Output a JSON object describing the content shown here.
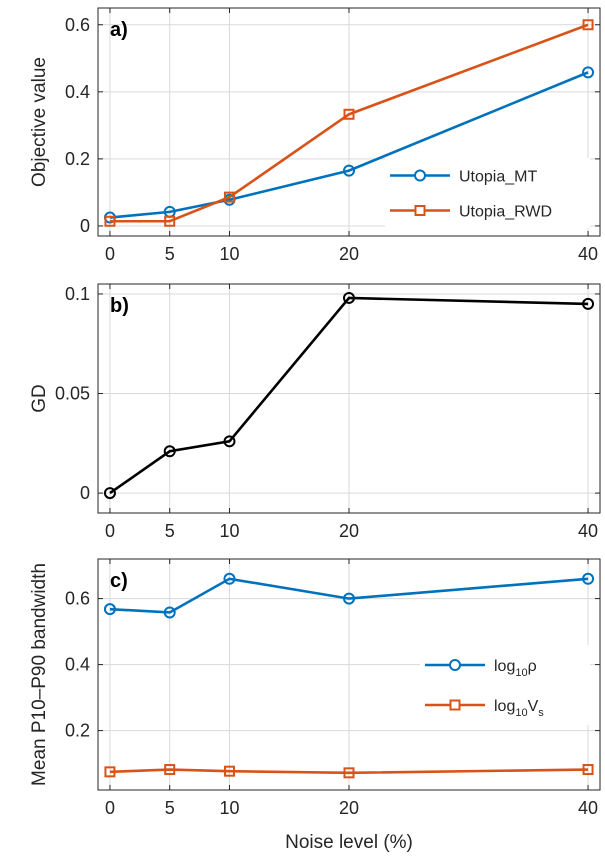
{
  "chart_data": [
    {
      "type": "line",
      "panel_label": "a)",
      "xlabel": "",
      "ylabel": "Objective value",
      "x": [
        0,
        5,
        10,
        20,
        40
      ],
      "xticks": [
        "0",
        "5",
        "10",
        "20",
        "40"
      ],
      "xlim": [
        -1,
        41
      ],
      "ylim": [
        -0.03,
        0.65
      ],
      "yticks": [
        0,
        0.2,
        0.4,
        0.6
      ],
      "yticklabels": [
        "0",
        "0.2",
        "0.4",
        "0.6"
      ],
      "grid": true,
      "legend_position": "bottom-right",
      "series": [
        {
          "name": "Utopia_MT",
          "marker": "circle",
          "color": "#0072BD",
          "values": [
            0.025,
            0.042,
            0.078,
            0.165,
            0.458
          ]
        },
        {
          "name": "Utopia_RWD",
          "marker": "square",
          "color": "#D95319",
          "values": [
            0.014,
            0.014,
            0.086,
            0.333,
            0.6
          ]
        }
      ]
    },
    {
      "type": "line",
      "panel_label": "b)",
      "xlabel": "",
      "ylabel": "GD",
      "x": [
        0,
        5,
        10,
        20,
        40
      ],
      "xticks": [
        "0",
        "5",
        "10",
        "20",
        "40"
      ],
      "xlim": [
        -1,
        41
      ],
      "ylim": [
        -0.01,
        0.105
      ],
      "yticks": [
        0,
        0.05,
        0.1
      ],
      "yticklabels": [
        "0",
        "0.05",
        "0.1"
      ],
      "grid": true,
      "legend_position": "none",
      "series": [
        {
          "marker": "circle",
          "color": "#000000",
          "values": [
            0,
            0.021,
            0.026,
            0.098,
            0.095
          ]
        }
      ]
    },
    {
      "type": "line",
      "panel_label": "c)",
      "xlabel": "Noise level (%)",
      "ylabel": "Mean P10–P90 bandwidth",
      "x": [
        0,
        5,
        10,
        20,
        40
      ],
      "xticks": [
        "0",
        "5",
        "10",
        "20",
        "40"
      ],
      "xlim": [
        -1,
        41
      ],
      "ylim": [
        0.02,
        0.72
      ],
      "yticks": [
        0.2,
        0.4,
        0.6
      ],
      "yticklabels": [
        "0.2",
        "0.4",
        "0.6"
      ],
      "grid": true,
      "legend_position": "right",
      "series": [
        {
          "name": "log10ρ",
          "legend_base": "log",
          "legend_sub": "10",
          "legend_tail": "ρ",
          "legend_tail_sub": "",
          "marker": "circle",
          "color": "#0072BD",
          "values": [
            0.568,
            0.558,
            0.66,
            0.6,
            0.66
          ]
        },
        {
          "name": "log10Vs",
          "legend_base": "log",
          "legend_sub": "10",
          "legend_tail": "V",
          "legend_tail_sub": "s",
          "marker": "square",
          "color": "#D95319",
          "values": [
            0.075,
            0.082,
            0.077,
            0.072,
            0.082
          ]
        }
      ]
    }
  ]
}
